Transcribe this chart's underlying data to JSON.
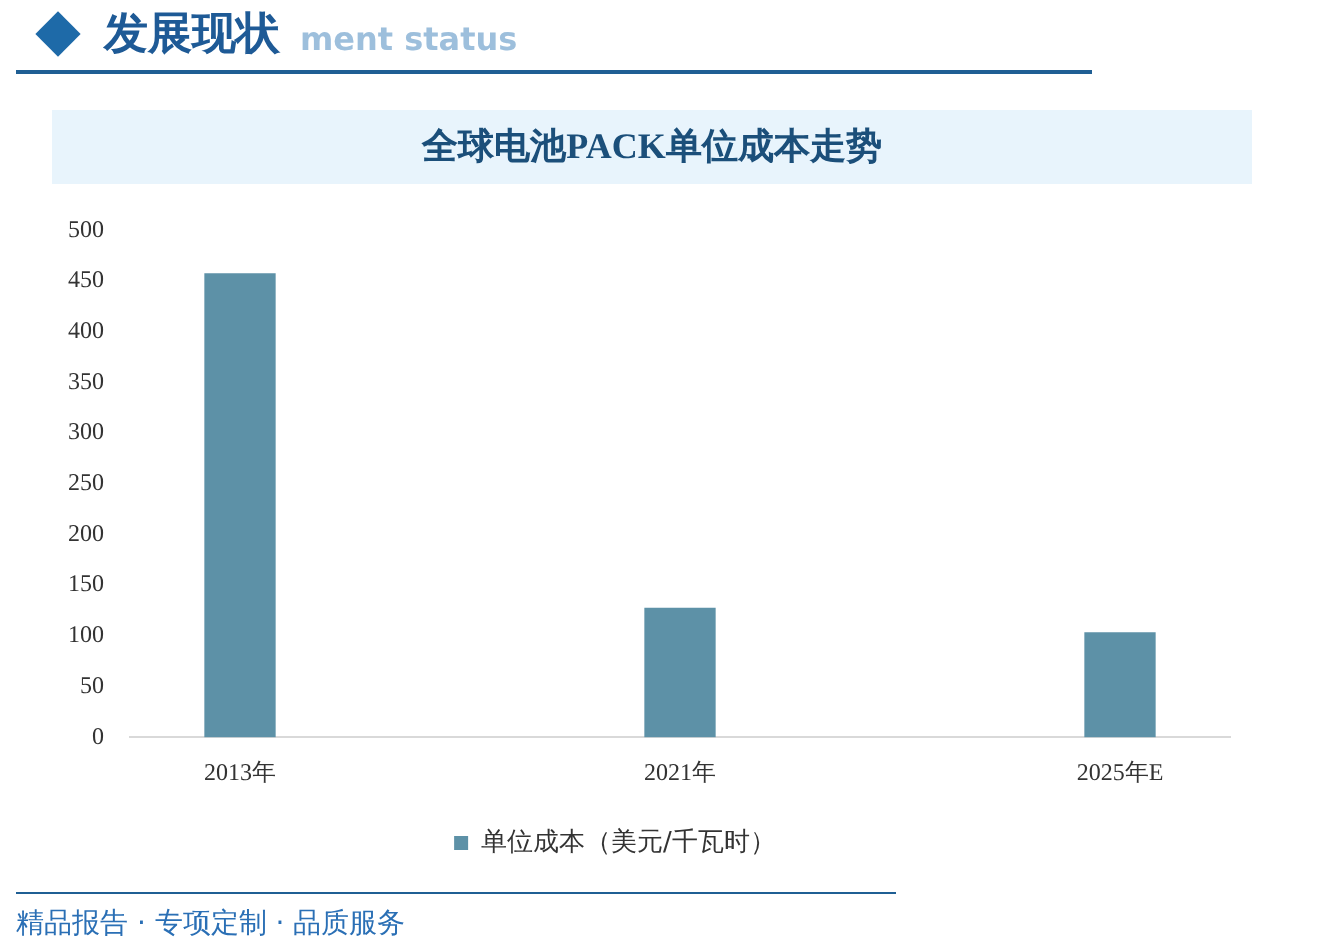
{
  "chart_data": {
    "type": "bar",
    "title": "全球电池PACK单位成本走势",
    "categories": [
      "2013年",
      "2021年",
      "2025年E"
    ],
    "series": [
      {
        "name": "单位成本（美元/千瓦时）",
        "color": "#5d91a7",
        "values": [
          457,
          127,
          103
        ]
      }
    ],
    "ylim": [
      0,
      500
    ],
    "yticks": [
      0,
      50,
      100,
      150,
      200,
      250,
      300,
      350,
      400,
      450,
      500
    ],
    "grid": false,
    "legend": "bottom",
    "annotations": [
      "发展现状",
      "ment status",
      "精品报告 · 专项定制 · 品质服务"
    ]
  }
}
